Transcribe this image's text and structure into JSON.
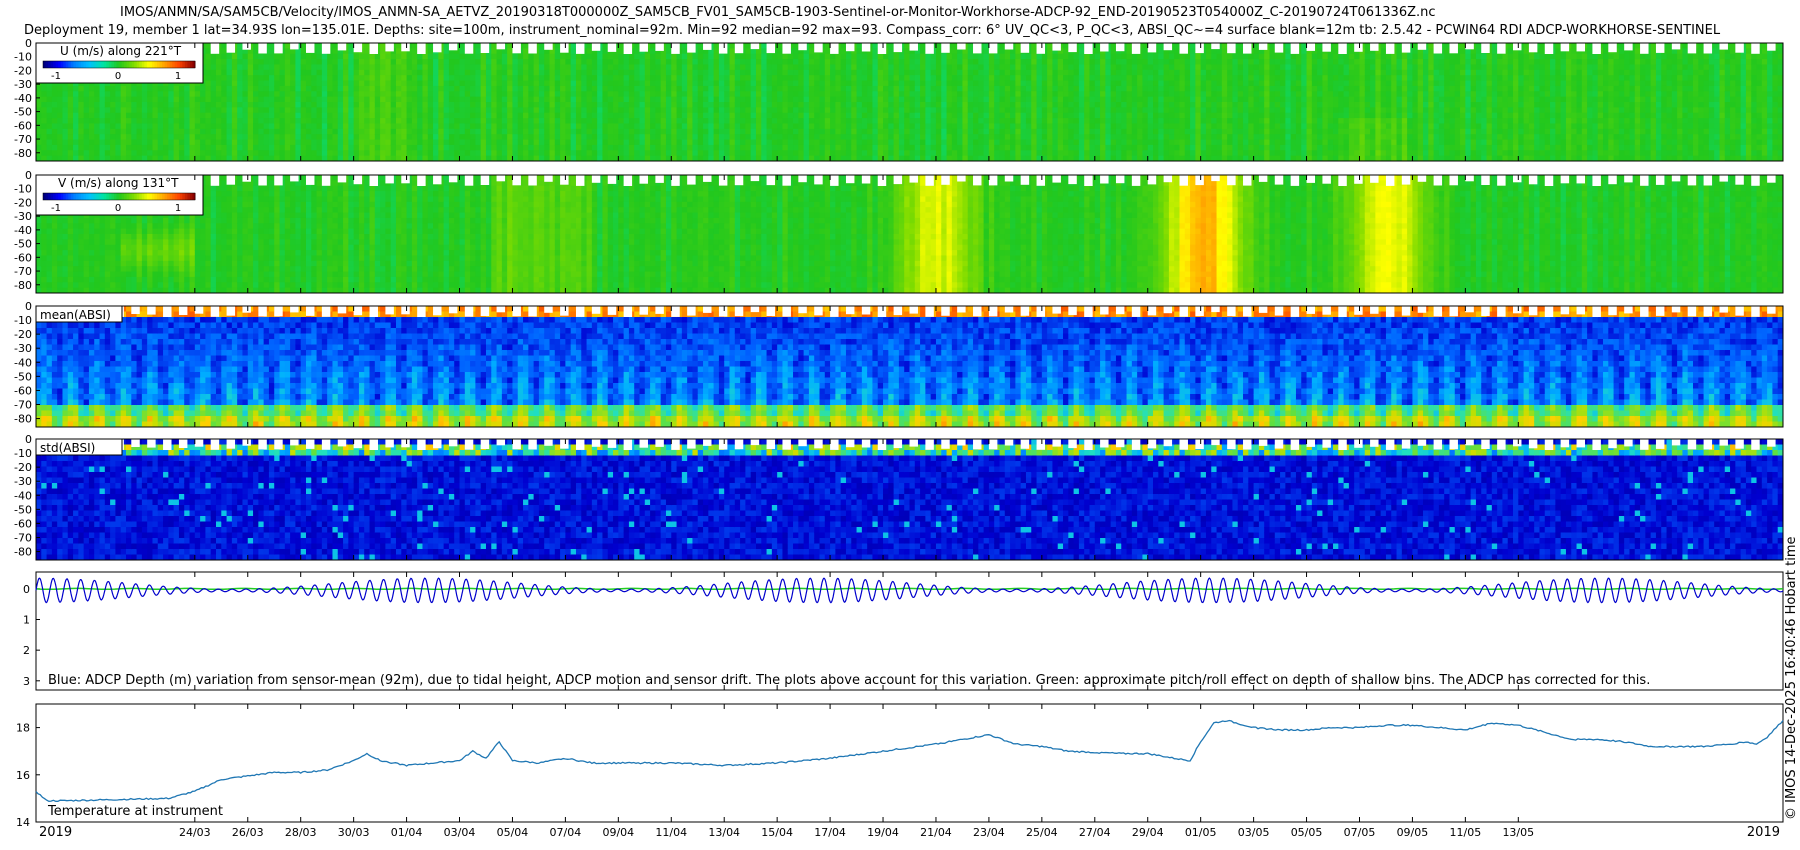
{
  "header": {
    "title_line1": "IMOS/ANMN/SA/SAM5CB/Velocity/IMOS_ANMN-SA_AETVZ_20190318T000000Z_SAM5CB_FV01_SAM5CB-1903-Sentinel-or-Monitor-Workhorse-ADCP-92_END-20190523T054000Z_C-20190724T061336Z.nc",
    "title_line2": "Deployment 19, member 1 lat=34.93S lon=135.01E. Depths: site=100m, instrument_nominal=92m. Min=92 median=92 max=93. Compass_corr: 6° UV_QC<3, P_QC<3, ABSI_QC~=4 surface blank=12m tb: 2.5.42 - PCWIN64 RDI ADCP-WORKHORSE-SENTINEL"
  },
  "side_label": "© IMOS 14-Dec-2025 16:40:46 Hobart time",
  "colors": {
    "temperature_line": "#1f77b4",
    "depth_line": "#0000cc",
    "pitch_roll_line": "#22cc22",
    "velocity_map": [
      "#00007f",
      "#0000ff",
      "#0080ff",
      "#00c0ff",
      "#00e5a0",
      "#22c81e",
      "#7fdc00",
      "#ffff00",
      "#ffa500",
      "#ff4500",
      "#8b0000"
    ],
    "absi_map": [
      "#00007f",
      "#0000d0",
      "#0060ff",
      "#00b0ff",
      "#20e0c0",
      "#60e040",
      "#c0e000",
      "#ffd000",
      "#ff6000",
      "#b00000"
    ]
  },
  "chart_data": [
    {
      "type": "heatmap",
      "name": "u_velocity",
      "title": "U (m/s) along 221°T",
      "colorbar_ticks": [
        "-1",
        "0",
        "1"
      ],
      "clim": [
        -1.4,
        1.4
      ],
      "y_ticks": [
        "0",
        "-10",
        "-20",
        "-30",
        "-40",
        "-50",
        "-60",
        "-70",
        "-80"
      ],
      "ylim": [
        -86,
        0
      ],
      "surface_blank_m": 12,
      "pattern": "mostly near-zero (green) with weak tidal banding; slightly positive streaks late April and mid-May"
    },
    {
      "type": "heatmap",
      "name": "v_velocity",
      "title": "V (m/s) along 131°T",
      "colorbar_ticks": [
        "-1",
        "0",
        "1"
      ],
      "clim": [
        -1.4,
        1.4
      ],
      "y_ticks": [
        "0",
        "-10",
        "-20",
        "-30",
        "-40",
        "-50",
        "-60",
        "-70",
        "-80"
      ],
      "ylim": [
        -86,
        0
      ],
      "surface_blank_m": 12,
      "peaks": [
        {
          "date": "2019-04-21",
          "value": 0.5
        },
        {
          "date": "2019-05-01",
          "value": 0.8
        },
        {
          "date": "2019-05-08",
          "value": 0.55
        }
      ]
    },
    {
      "type": "heatmap",
      "name": "mean_absi",
      "title": "mean(ABSI)",
      "y_ticks": [
        "0",
        "-10",
        "-20",
        "-30",
        "-40",
        "-50",
        "-60",
        "-70",
        "-80"
      ],
      "ylim": [
        -86,
        0
      ],
      "pattern": "high (red) near surface ~-5m, blue mid-column with diel cycles, green near bed"
    },
    {
      "type": "heatmap",
      "name": "std_absi",
      "title": "std(ABSI)",
      "y_ticks": [
        "0",
        "-10",
        "-20",
        "-30",
        "-40",
        "-50",
        "-60",
        "-70",
        "-80"
      ],
      "ylim": [
        -86,
        0
      ],
      "pattern": "mostly low (dark blue); noisy bands around -5 and -10 m"
    },
    {
      "type": "line",
      "name": "adcp_depth_variation",
      "y_ticks": [
        "0",
        "1",
        "2",
        "3"
      ],
      "ylim": [
        -0.55,
        3.3
      ],
      "y_inverted": true,
      "annotation": "Blue: ADCP Depth (m) variation from sensor-mean (92m), due to tidal height, ADCP motion and sensor drift. The plots above account for this variation. Green: approximate pitch/roll effect on depth of shallow bins. The ADCP has corrected for this.",
      "series": [
        {
          "name": "ADCP depth variation",
          "tidal_amplitude_m": 0.4,
          "tidal_period_days": 0.52
        },
        {
          "name": "pitch/roll effect",
          "value": 0.0
        }
      ]
    },
    {
      "type": "line",
      "name": "temperature",
      "annotation": "Temperature at instrument",
      "y_ticks": [
        "14",
        "16",
        "18"
      ],
      "ylim": [
        14,
        19
      ],
      "xlim": [
        "2019-03-18",
        "2019-05-23"
      ],
      "x_tick_labels": [
        "2019",
        "24/03",
        "26/03",
        "28/03",
        "30/03",
        "01/04",
        "03/04",
        "05/04",
        "07/04",
        "09/04",
        "11/04",
        "13/04",
        "15/04",
        "17/04",
        "19/04",
        "21/04",
        "23/04",
        "25/04",
        "27/04",
        "29/04",
        "01/05",
        "03/05",
        "05/05",
        "07/05",
        "09/05",
        "11/05",
        "13/05",
        "2019"
      ],
      "x_tick_days": [
        0,
        6,
        8,
        10,
        12,
        14,
        16,
        18,
        20,
        22,
        24,
        26,
        28,
        30,
        32,
        34,
        36,
        38,
        40,
        42,
        44,
        46,
        48,
        50,
        52,
        54,
        56,
        66
      ],
      "series": [
        {
          "name": "Temperature",
          "x_days": [
            0,
            0.4,
            1,
            3,
            5,
            6,
            7,
            8,
            9,
            10,
            11,
            12,
            12.5,
            13,
            14,
            15,
            16,
            16.5,
            17,
            17.5,
            18,
            19,
            20,
            21,
            22,
            24,
            26,
            28,
            30,
            32,
            34,
            35,
            36,
            37,
            38,
            39,
            40,
            41,
            42,
            43,
            43.6,
            44,
            44.5,
            45,
            46,
            47,
            48,
            49,
            50,
            51,
            52,
            53,
            54,
            55,
            56,
            57,
            58,
            59,
            60,
            61,
            62,
            63,
            64,
            64.6,
            65,
            65.4,
            66
          ],
          "values": [
            15.3,
            14.9,
            14.9,
            14.95,
            15.0,
            15.3,
            15.8,
            15.95,
            16.1,
            16.1,
            16.2,
            16.6,
            16.9,
            16.6,
            16.4,
            16.5,
            16.6,
            17.0,
            16.7,
            17.4,
            16.6,
            16.5,
            16.7,
            16.5,
            16.5,
            16.5,
            16.4,
            16.5,
            16.7,
            17.0,
            17.3,
            17.5,
            17.7,
            17.3,
            17.2,
            17.0,
            16.95,
            16.9,
            16.9,
            16.7,
            16.6,
            17.4,
            18.2,
            18.3,
            18.0,
            17.9,
            17.9,
            18.0,
            18.0,
            18.1,
            18.1,
            18.0,
            17.9,
            18.2,
            18.1,
            17.8,
            17.5,
            17.5,
            17.4,
            17.2,
            17.2,
            17.2,
            17.3,
            17.4,
            17.3,
            17.6,
            18.3
          ]
        }
      ]
    }
  ]
}
